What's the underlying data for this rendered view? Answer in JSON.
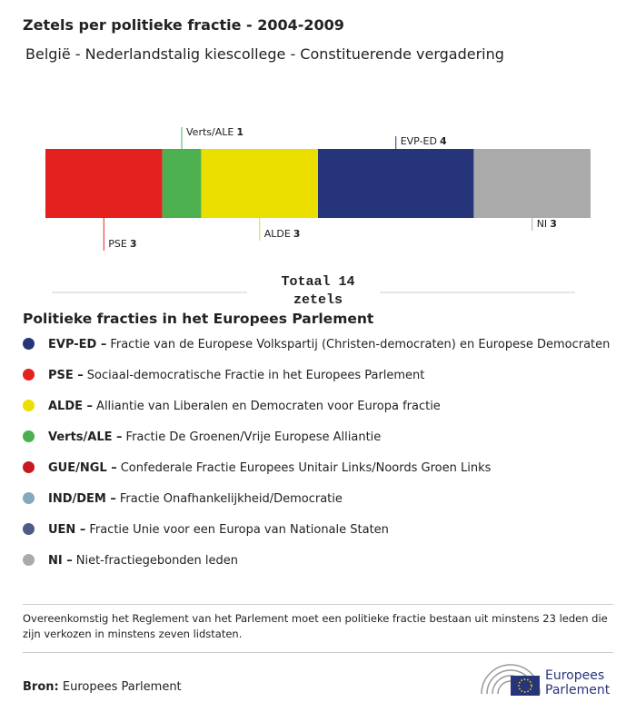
{
  "chart_data": {
    "type": "stacked-bar",
    "title": "Zetels per politieke fractie - 2004-2009",
    "subtitle": "België - Nederlandstalig kiescollege - Constituerende vergadering",
    "series": [
      {
        "name": "PSE",
        "color": "#e3221f",
        "values": [
          3
        ]
      },
      {
        "name": "Verts/ALE",
        "color": "#4caf50",
        "values": [
          1
        ]
      },
      {
        "name": "ALDE",
        "color": "#ebdf00",
        "values": [
          3
        ]
      },
      {
        "name": "EVP-ED",
        "color": "#26357a",
        "values": [
          4
        ]
      },
      {
        "name": "NI",
        "color": "#aaaaaa",
        "values": [
          3
        ]
      }
    ],
    "total_label": "Totaal 14 zetels"
  },
  "legend": {
    "title": "Politieke fracties in het Europees Parlement",
    "items": [
      {
        "abbr": "EVP-ED –",
        "text": "Fractie van de Europese Volkspartij (Christen-democraten) en Europese Democraten",
        "color": "#26357a"
      },
      {
        "abbr": "PSE –",
        "text": "Sociaal-democratische Fractie in het Europees Parlement",
        "color": "#e3221f"
      },
      {
        "abbr": "ALDE –",
        "text": "Alliantie van Liberalen en Democraten voor Europa fractie",
        "color": "#ebdf00"
      },
      {
        "abbr": "Verts/ALE –",
        "text": "Fractie De Groenen/Vrije Europese Alliantie",
        "color": "#4caf50"
      },
      {
        "abbr": "GUE/NGL –",
        "text": "Confederale Fractie Europees Unitair Links/Noords Groen Links",
        "color": "#c8191f"
      },
      {
        "abbr": "IND/DEM –",
        "text": "Fractie Onafhankelijkheid/Democratie",
        "color": "#82a9bd"
      },
      {
        "abbr": "UEN –",
        "text": "Fractie Unie voor een Europa van Nationale Staten",
        "color": "#4e5a88"
      },
      {
        "abbr": "NI –",
        "text": "Niet-fractiegebonden leden",
        "color": "#aaaaaa"
      }
    ]
  },
  "footnote": "Overeenkomstig het Reglement van het Parlement moet een politieke fractie bestaan uit minstens 23 leden die zijn verkozen in minstens zeven lidstaten.",
  "source": {
    "label": "Bron:",
    "text": "Europees Parlement"
  },
  "logo_text": "Europees Parlement"
}
